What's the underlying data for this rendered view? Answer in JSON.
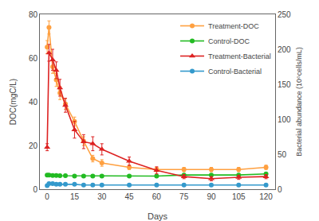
{
  "chart_data": {
    "type": "line",
    "xlabel": "Days",
    "ylabel": "DOC(mgC/L)",
    "y2label": "Bacterial abundance (10⁶cells/mL)",
    "x": [
      0,
      1,
      3,
      5,
      7,
      10,
      15,
      20,
      25,
      30,
      45,
      60,
      75,
      90,
      105,
      120
    ],
    "series": [
      {
        "name": "Treatment-DOC",
        "color": "#FFA040",
        "marker": "circle",
        "line_style": "solid",
        "values": [
          65,
          74,
          56,
          50,
          44,
          39,
          31,
          22,
          14,
          12,
          10,
          9,
          9,
          9,
          9,
          10
        ],
        "errors": [
          3,
          3,
          3,
          3,
          3,
          2.5,
          2,
          2,
          1.5,
          1.5,
          1,
          1,
          1,
          1,
          1,
          1
        ]
      },
      {
        "name": "Control-DOC",
        "color": "#22BB22",
        "marker": "circle",
        "line_style": "solid",
        "values": [
          6.5,
          6.5,
          6.3,
          6.3,
          6.2,
          6.2,
          6.0,
          6.0,
          6.0,
          6.0,
          6.0,
          6.0,
          6.5,
          6.5,
          6.5,
          7.0
        ],
        "errors": [
          0.3,
          0.3,
          0.3,
          0.3,
          0.3,
          0.3,
          0.3,
          0.3,
          0.3,
          0.3,
          0.3,
          0.3,
          0.3,
          0.3,
          0.3,
          0.3
        ]
      },
      {
        "name": "Treatment-Bacterial",
        "color": "#DD2222",
        "marker": "triangle",
        "line_style": "solid",
        "axis": "y2",
        "values": [
          60,
          195,
          185,
          170,
          145,
          120,
          85,
          68,
          65,
          57,
          40,
          27,
          18,
          15,
          17,
          18
        ],
        "errors": [
          5,
          12,
          15,
          12,
          12,
          10,
          12,
          10,
          10,
          8,
          6,
          5,
          3,
          3,
          3,
          3
        ]
      },
      {
        "name": "Control-Bacterial",
        "color": "#3399CC",
        "marker": "circle",
        "line_style": "solid",
        "axis": "y2",
        "values": [
          5,
          8,
          8,
          7,
          7,
          7,
          7,
          6,
          6,
          6,
          6,
          6,
          6,
          6,
          6,
          6
        ],
        "errors": [
          0.5,
          0.8,
          0.8,
          0.7,
          0.7,
          0.7,
          0.7,
          0.6,
          0.6,
          0.6,
          0.6,
          0.6,
          0.6,
          0.6,
          0.6,
          0.6
        ]
      }
    ],
    "xlim": [
      -4,
      125
    ],
    "xticks": [
      0,
      15,
      30,
      45,
      60,
      75,
      90,
      105,
      120
    ],
    "ylim": [
      0,
      80
    ],
    "yticks": [
      0,
      20,
      40,
      60,
      80
    ],
    "y2lim": [
      0,
      250
    ],
    "y2ticks": [
      0,
      50,
      100,
      150,
      200,
      250
    ],
    "grid": false,
    "legend": "upper right"
  }
}
